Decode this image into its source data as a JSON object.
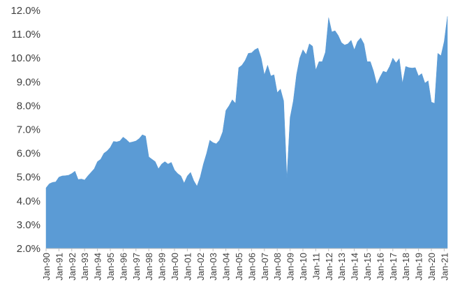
{
  "chart_data": {
    "type": "area",
    "title": "",
    "xlabel": "",
    "ylabel": "",
    "ylim": [
      2.0,
      12.0
    ],
    "ytick_step": 1.0,
    "y_format": "percent_1dp",
    "grid": false,
    "color": "#5b9bd5",
    "x_tick_labels": [
      "Jan-90",
      "Jan-91",
      "Jan-92",
      "Jan-93",
      "Jan-94",
      "Jan-95",
      "Jan-96",
      "Jan-97",
      "Jan-98",
      "Jan-99",
      "Jan-00",
      "Jan-01",
      "Jan-02",
      "Jan-03",
      "Jan-04",
      "Jan-05",
      "Jan-06",
      "Jan-07",
      "Jan-08",
      "Jan-09",
      "Jan-10",
      "Jan-11",
      "Jan-12",
      "Jan-13",
      "Jan-14",
      "Jan-15",
      "Jan-16",
      "Jan-17",
      "Jan-18",
      "Jan-19",
      "Jan-20",
      "Jan-21"
    ],
    "series": [
      {
        "values": [
          [
            1990.0,
            4.55
          ],
          [
            1990.25,
            4.72
          ],
          [
            1990.5,
            4.78
          ],
          [
            1990.75,
            4.8
          ],
          [
            1991.0,
            5.0
          ],
          [
            1991.25,
            5.05
          ],
          [
            1991.5,
            5.06
          ],
          [
            1991.75,
            5.08
          ],
          [
            1992.0,
            5.15
          ],
          [
            1992.25,
            5.25
          ],
          [
            1992.5,
            4.9
          ],
          [
            1992.75,
            4.92
          ],
          [
            1993.0,
            4.88
          ],
          [
            1993.25,
            5.05
          ],
          [
            1993.5,
            5.2
          ],
          [
            1993.75,
            5.35
          ],
          [
            1994.0,
            5.65
          ],
          [
            1994.25,
            5.75
          ],
          [
            1994.5,
            6.0
          ],
          [
            1994.75,
            6.1
          ],
          [
            1995.0,
            6.25
          ],
          [
            1995.25,
            6.5
          ],
          [
            1995.5,
            6.48
          ],
          [
            1995.75,
            6.52
          ],
          [
            1996.0,
            6.68
          ],
          [
            1996.25,
            6.58
          ],
          [
            1996.5,
            6.45
          ],
          [
            1996.75,
            6.48
          ],
          [
            1997.0,
            6.52
          ],
          [
            1997.25,
            6.62
          ],
          [
            1997.5,
            6.78
          ],
          [
            1997.75,
            6.72
          ],
          [
            1998.0,
            5.85
          ],
          [
            1998.25,
            5.75
          ],
          [
            1998.5,
            5.65
          ],
          [
            1998.75,
            5.35
          ],
          [
            1999.0,
            5.55
          ],
          [
            1999.25,
            5.65
          ],
          [
            1999.5,
            5.55
          ],
          [
            1999.75,
            5.62
          ],
          [
            2000.0,
            5.3
          ],
          [
            2000.25,
            5.15
          ],
          [
            2000.5,
            5.05
          ],
          [
            2000.75,
            4.75
          ],
          [
            2001.0,
            5.05
          ],
          [
            2001.25,
            5.2
          ],
          [
            2001.5,
            4.85
          ],
          [
            2001.75,
            4.62
          ],
          [
            2002.0,
            5.0
          ],
          [
            2002.25,
            5.55
          ],
          [
            2002.5,
            6.0
          ],
          [
            2002.75,
            6.55
          ],
          [
            2003.0,
            6.45
          ],
          [
            2003.25,
            6.4
          ],
          [
            2003.5,
            6.55
          ],
          [
            2003.75,
            6.9
          ],
          [
            2004.0,
            7.8
          ],
          [
            2004.25,
            8.0
          ],
          [
            2004.5,
            8.25
          ],
          [
            2004.75,
            8.1
          ],
          [
            2005.0,
            9.6
          ],
          [
            2005.25,
            9.7
          ],
          [
            2005.5,
            9.9
          ],
          [
            2005.75,
            10.2
          ],
          [
            2006.0,
            10.22
          ],
          [
            2006.25,
            10.35
          ],
          [
            2006.5,
            10.42
          ],
          [
            2006.75,
            10.0
          ],
          [
            2007.0,
            9.3
          ],
          [
            2007.25,
            9.7
          ],
          [
            2007.5,
            9.25
          ],
          [
            2007.75,
            9.3
          ],
          [
            2008.0,
            8.55
          ],
          [
            2008.25,
            8.7
          ],
          [
            2008.5,
            8.2
          ],
          [
            2008.75,
            4.95
          ],
          [
            2009.0,
            7.5
          ],
          [
            2009.25,
            8.2
          ],
          [
            2009.5,
            9.3
          ],
          [
            2009.75,
            10.0
          ],
          [
            2010.0,
            10.35
          ],
          [
            2010.25,
            10.15
          ],
          [
            2010.5,
            10.6
          ],
          [
            2010.75,
            10.5
          ],
          [
            2011.0,
            9.5
          ],
          [
            2011.25,
            9.85
          ],
          [
            2011.5,
            9.85
          ],
          [
            2011.75,
            10.25
          ],
          [
            2012.0,
            11.7
          ],
          [
            2012.25,
            11.1
          ],
          [
            2012.5,
            11.15
          ],
          [
            2012.75,
            10.95
          ],
          [
            2013.0,
            10.65
          ],
          [
            2013.25,
            10.55
          ],
          [
            2013.5,
            10.6
          ],
          [
            2013.75,
            10.75
          ],
          [
            2014.0,
            10.35
          ],
          [
            2014.25,
            10.7
          ],
          [
            2014.5,
            10.85
          ],
          [
            2014.75,
            10.6
          ],
          [
            2015.0,
            9.85
          ],
          [
            2015.25,
            9.85
          ],
          [
            2015.5,
            9.45
          ],
          [
            2015.75,
            8.9
          ],
          [
            2016.0,
            9.2
          ],
          [
            2016.25,
            9.45
          ],
          [
            2016.5,
            9.4
          ],
          [
            2016.75,
            9.65
          ],
          [
            2017.0,
            10.0
          ],
          [
            2017.25,
            9.8
          ],
          [
            2017.5,
            9.98
          ],
          [
            2017.75,
            8.95
          ],
          [
            2018.0,
            9.65
          ],
          [
            2018.25,
            9.6
          ],
          [
            2018.5,
            9.58
          ],
          [
            2018.75,
            9.6
          ],
          [
            2019.0,
            9.25
          ],
          [
            2019.25,
            9.35
          ],
          [
            2019.5,
            8.95
          ],
          [
            2019.75,
            9.05
          ],
          [
            2020.0,
            8.15
          ],
          [
            2020.25,
            8.1
          ],
          [
            2020.5,
            10.2
          ],
          [
            2020.75,
            10.1
          ],
          [
            2021.0,
            10.7
          ],
          [
            2021.25,
            11.75
          ]
        ]
      }
    ]
  }
}
